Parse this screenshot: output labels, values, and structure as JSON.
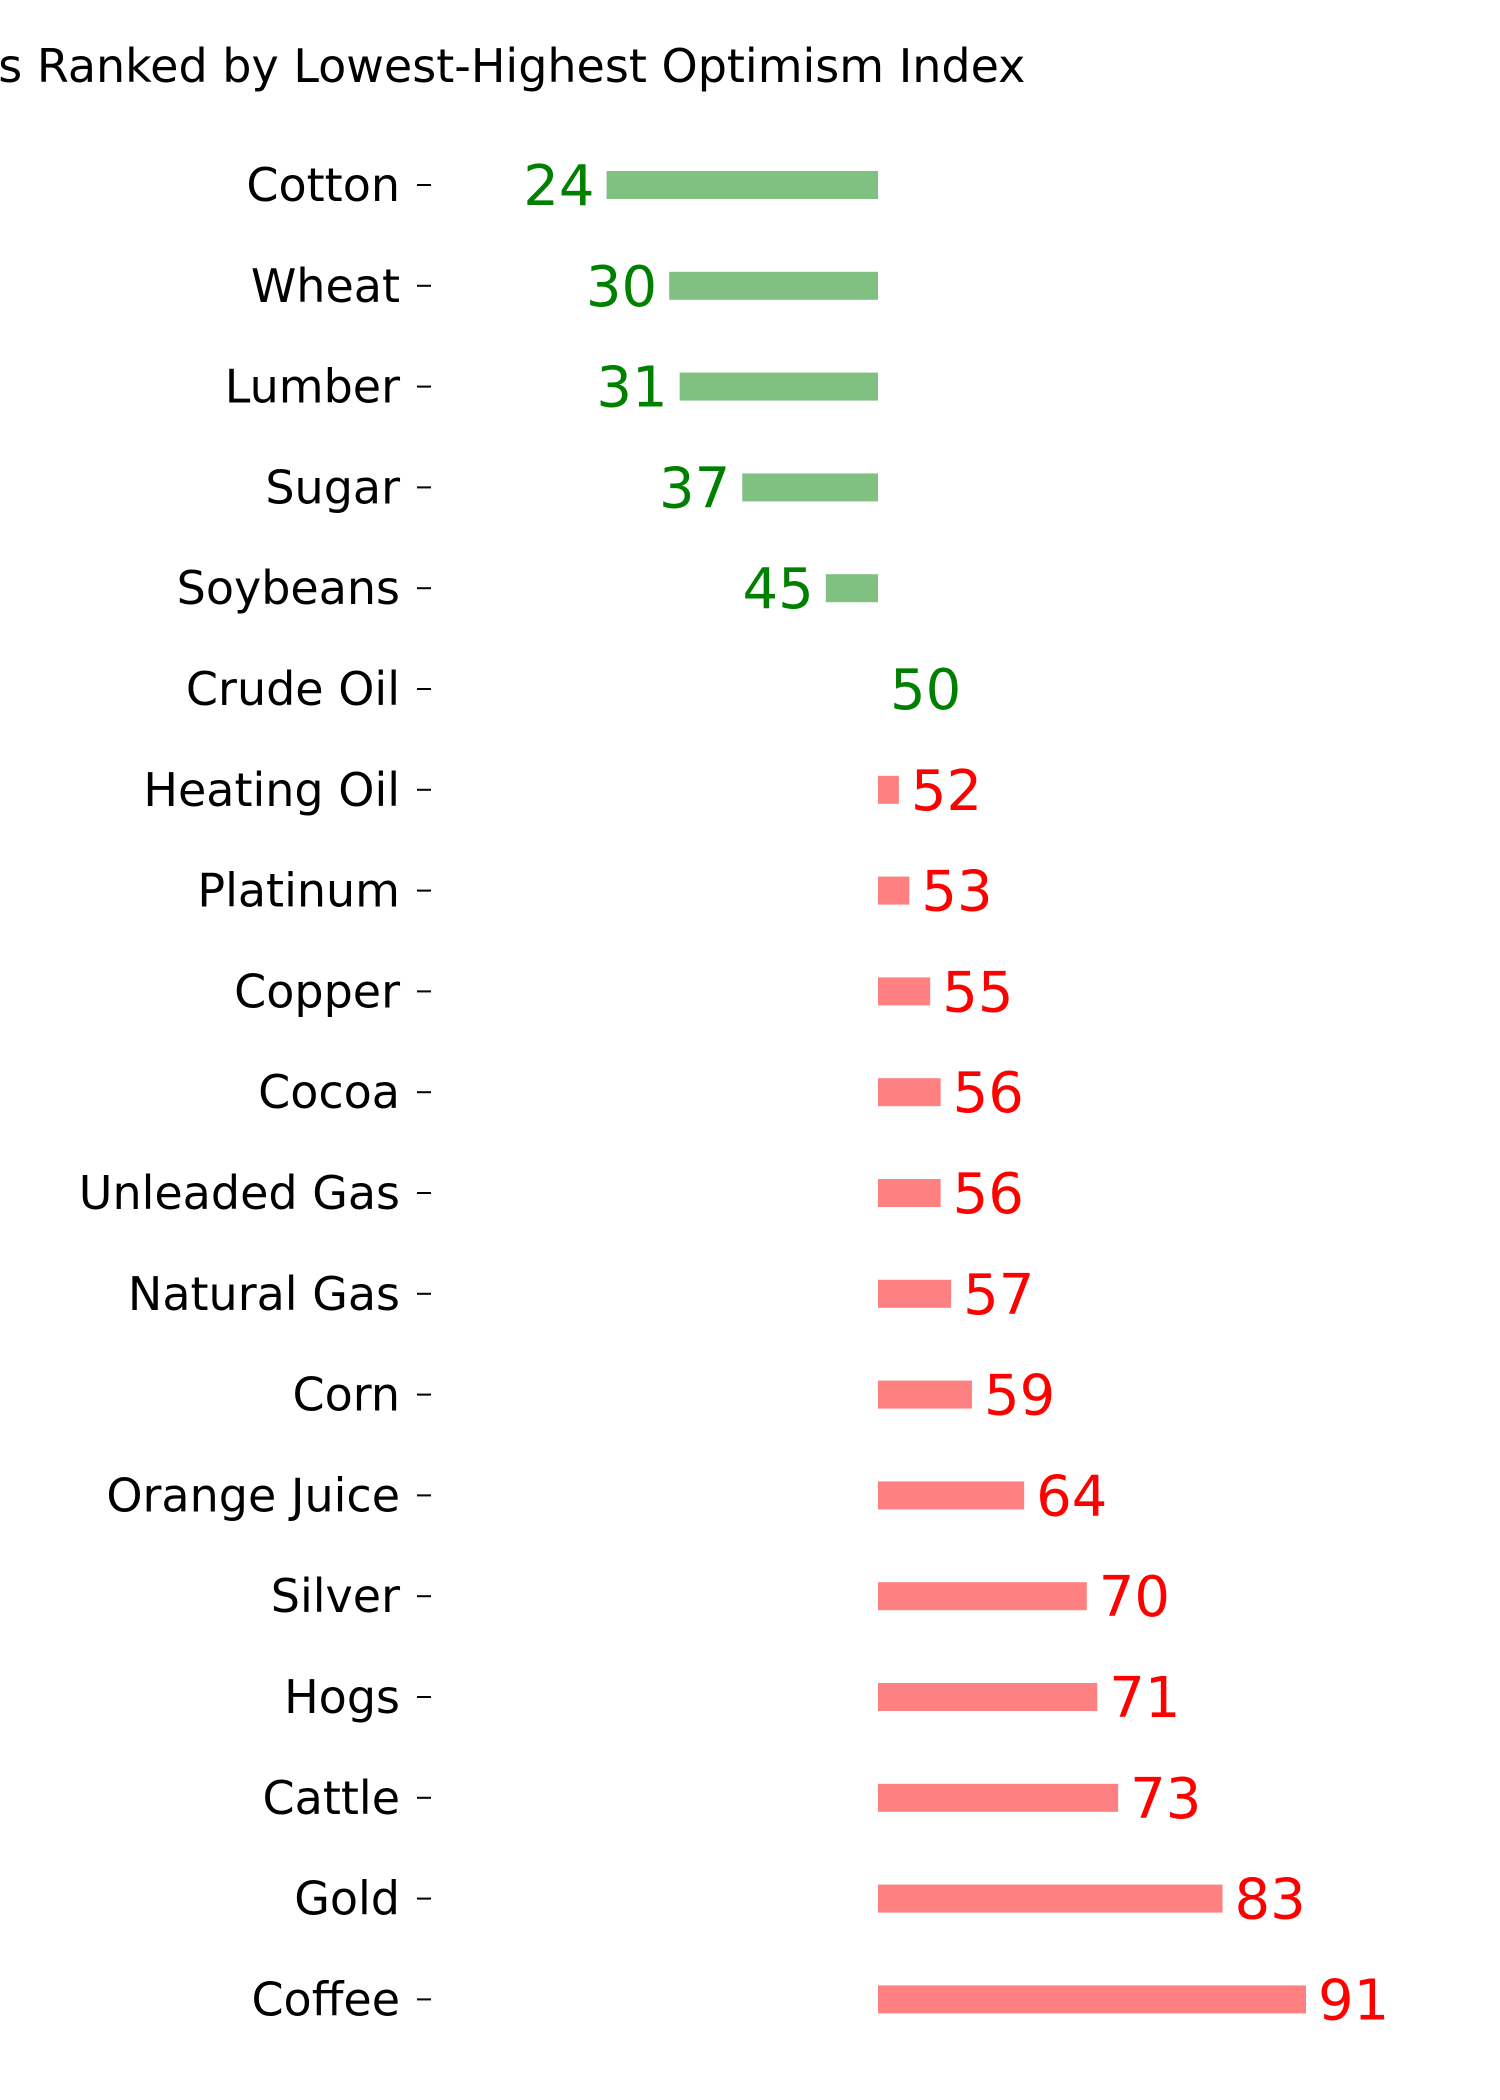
{
  "chart_data": {
    "type": "bar",
    "orientation": "horizontal",
    "title": "es Ranked by Lowest-Highest Optimism Index",
    "categories": [
      "Cotton",
      "Wheat",
      "Lumber",
      "Sugar",
      "Soybeans",
      "Crude Oil",
      "Heating Oil",
      "Platinum",
      "Copper",
      "Cocoa",
      "Unleaded Gas",
      "Natural Gas",
      "Corn",
      "Orange Juice",
      "Silver",
      "Hogs",
      "Cattle",
      "Gold",
      "Coffee"
    ],
    "values": [
      24,
      30,
      31,
      37,
      45,
      50,
      52,
      53,
      55,
      56,
      56,
      57,
      59,
      64,
      70,
      71,
      73,
      83,
      91
    ],
    "value_labels": [
      "24",
      "30",
      "31",
      "37",
      "45",
      "50",
      "52",
      "53",
      "55",
      "56",
      "56",
      "57",
      "59",
      "64",
      "70",
      "71",
      "73",
      "83",
      "91"
    ],
    "baseline": 50,
    "xlim": [
      0,
      100
    ],
    "grid": false,
    "colors": {
      "below_bar": "#80c080",
      "below_text": "#008000",
      "above_bar": "#ff8080",
      "above_text": "#ff0000"
    }
  }
}
